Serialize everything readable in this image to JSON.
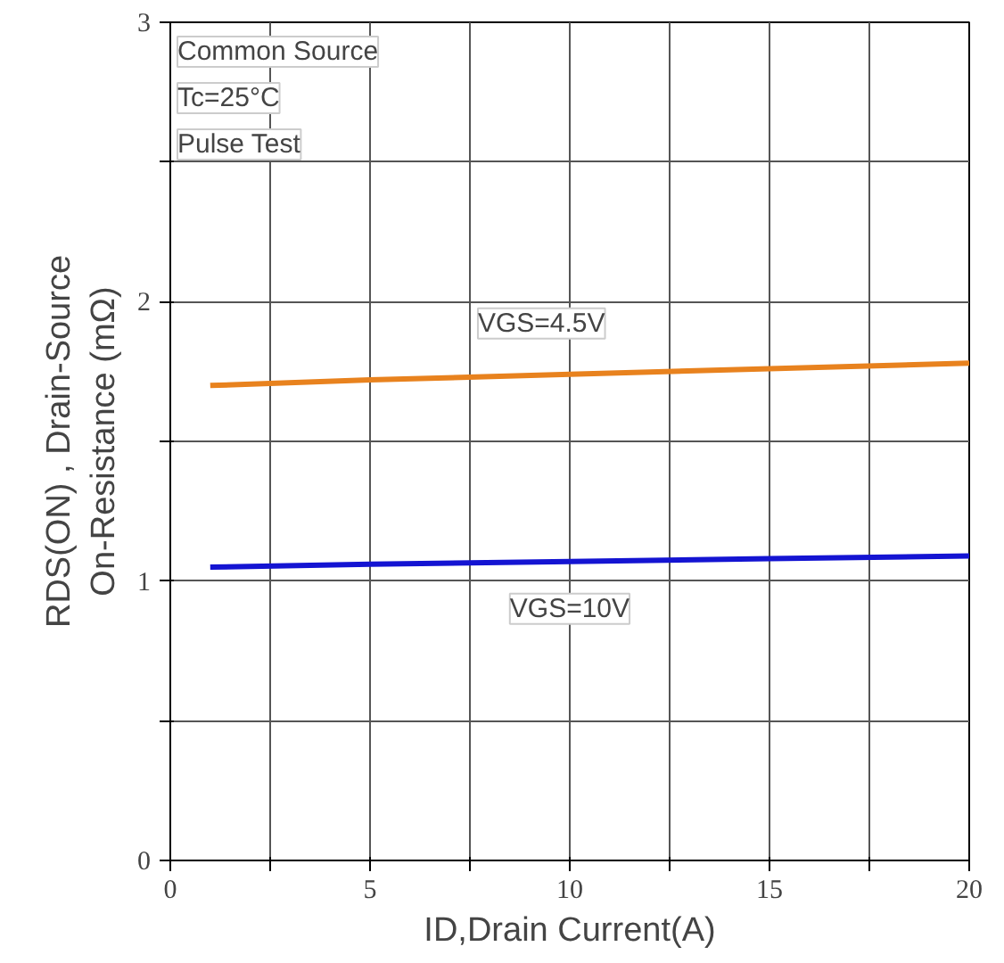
{
  "chart_data": {
    "type": "line",
    "xlabel": "ID,Drain Current(A)",
    "ylabel": "RDS(ON) , Drain-Source\nOn-Resistance (mΩ)",
    "annotations": [
      "Common Source",
      "Tc=25°C",
      "Pulse Test"
    ],
    "x": [
      1,
      5,
      10,
      15,
      20
    ],
    "series": [
      {
        "name": "VGS=4.5V",
        "color": "#e8821e",
        "values": [
          1.7,
          1.72,
          1.74,
          1.76,
          1.78
        ]
      },
      {
        "name": "VGS=10V",
        "color": "#1414d2",
        "values": [
          1.05,
          1.06,
          1.07,
          1.08,
          1.09
        ]
      }
    ],
    "xlim": [
      0,
      20
    ],
    "ylim": [
      0,
      3
    ],
    "xticks": [
      0,
      {
        "value": 2.5,
        "label": null
      },
      5,
      {
        "value": 7.5,
        "label": null
      },
      10,
      {
        "value": 12.5,
        "label": null
      },
      15,
      {
        "value": 17.5,
        "label": null
      },
      20
    ],
    "yticks": [
      0,
      {
        "value": 0.5,
        "label": null
      },
      1,
      {
        "value": 1.5,
        "label": null
      },
      2,
      {
        "value": 2.5,
        "label": null
      },
      3
    ],
    "grid": true,
    "legend": false,
    "line_style": "solid",
    "marker": "none"
  }
}
